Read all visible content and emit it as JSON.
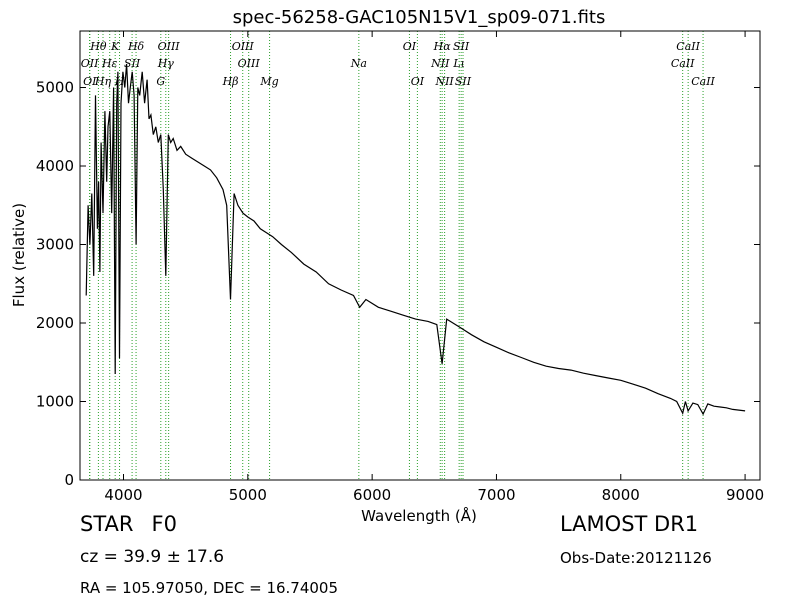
{
  "chart_data": {
    "type": "line",
    "title": "spec-56258-GAC105N15V1_sp09-071.fits",
    "xlabel": "Wavelength (Å)",
    "ylabel": "Flux (relative)",
    "xlim": [
      3650,
      9120
    ],
    "ylim": [
      0,
      5720
    ],
    "xticks": [
      4000,
      5000,
      6000,
      7000,
      8000,
      9000
    ],
    "xtick_labels": [
      "4000",
      "5000",
      "6000",
      "7000",
      "8000",
      "9000"
    ],
    "yticks": [
      0,
      1000,
      2000,
      3000,
      4000,
      5000
    ],
    "ytick_labels": [
      "0",
      "1000",
      "2000",
      "3000",
      "4000",
      "5000"
    ],
    "grid": false,
    "line_color": "#000000",
    "marker_color": "#2ca02c",
    "series": [
      {
        "x": [
          3700,
          3715,
          3730,
          3745,
          3760,
          3775,
          3790,
          3800,
          3810,
          3820,
          3835,
          3850,
          3865,
          3875,
          3890,
          3905,
          3920,
          3933,
          3945,
          3955,
          3968,
          3980,
          3995,
          4010,
          4025,
          4040,
          4055,
          4070,
          4085,
          4101,
          4115,
          4130,
          4150,
          4170,
          4190,
          4205,
          4220,
          4240,
          4260,
          4280,
          4300,
          4320,
          4340,
          4360,
          4380,
          4400,
          4430,
          4460,
          4500,
          4550,
          4600,
          4650,
          4700,
          4750,
          4800,
          4830,
          4861,
          4890,
          4920,
          4960,
          5000,
          5050,
          5100,
          5150,
          5200,
          5270,
          5350,
          5450,
          5550,
          5650,
          5750,
          5850,
          5900,
          5950,
          6050,
          6150,
          6250,
          6350,
          6450,
          6520,
          6563,
          6600,
          6700,
          6800,
          6900,
          7000,
          7100,
          7200,
          7300,
          7400,
          7500,
          7600,
          7700,
          7800,
          7900,
          8000,
          8100,
          8200,
          8300,
          8400,
          8450,
          8498,
          8520,
          8542,
          8580,
          8620,
          8662,
          8700,
          8750,
          8800,
          8850,
          8900,
          8950,
          9000
        ],
        "y": [
          2350,
          3500,
          3000,
          3650,
          2600,
          4900,
          3200,
          3800,
          2650,
          4300,
          3400,
          4700,
          3800,
          4500,
          4700,
          3400,
          5000,
          1350,
          4800,
          5200,
          1550,
          4800,
          5200,
          5000,
          5300,
          4800,
          5000,
          5200,
          4900,
          3000,
          5000,
          4900,
          5200,
          4800,
          5100,
          4600,
          4650,
          4400,
          4500,
          4300,
          4400,
          3700,
          2600,
          4400,
          4300,
          4350,
          4200,
          4250,
          4150,
          4100,
          4050,
          4000,
          3950,
          3850,
          3700,
          3500,
          2300,
          3650,
          3500,
          3400,
          3350,
          3300,
          3200,
          3150,
          3100,
          3000,
          2900,
          2750,
          2650,
          2500,
          2420,
          2350,
          2200,
          2300,
          2200,
          2150,
          2100,
          2050,
          2020,
          1980,
          1480,
          2050,
          1950,
          1850,
          1760,
          1690,
          1620,
          1560,
          1500,
          1450,
          1420,
          1400,
          1360,
          1330,
          1300,
          1270,
          1220,
          1170,
          1100,
          1040,
          1000,
          850,
          1000,
          880,
          980,
          960,
          840,
          970,
          940,
          930,
          920,
          900,
          890,
          880
        ]
      }
    ],
    "line_markers": [
      {
        "label": "Hθ",
        "x": 3798,
        "row": 1
      },
      {
        "label": "K",
        "x": 3933,
        "row": 1
      },
      {
        "label": "Hδ",
        "x": 4101,
        "row": 1
      },
      {
        "label": "OIII",
        "x": 4363,
        "row": 1
      },
      {
        "label": "OIII",
        "x": 4959,
        "row": 1
      },
      {
        "label": "OI",
        "x": 6300,
        "row": 1
      },
      {
        "label": "Hα",
        "x": 6563,
        "row": 1
      },
      {
        "label": "SII",
        "x": 6716,
        "row": 1
      },
      {
        "label": "CaII",
        "x": 8542,
        "row": 1
      },
      {
        "label": "OII",
        "x": 3727,
        "row": 2
      },
      {
        "label": "Hε",
        "x": 3889,
        "row": 2
      },
      {
        "label": "SII",
        "x": 4069,
        "row": 2
      },
      {
        "label": "Hγ",
        "x": 4340,
        "row": 2
      },
      {
        "label": "OIII",
        "x": 5007,
        "row": 2
      },
      {
        "label": "Na",
        "x": 5893,
        "row": 2
      },
      {
        "label": "NII",
        "x": 6548,
        "row": 2
      },
      {
        "label": "Lι",
        "x": 6700,
        "row": 2
      },
      {
        "label": "CaII",
        "x": 8498,
        "row": 2
      },
      {
        "label": "OI",
        "x": 3729,
        "row": 3
      },
      {
        "label": "Hη",
        "x": 3835,
        "row": 3
      },
      {
        "label": "H",
        "x": 3968,
        "row": 3
      },
      {
        "label": "G",
        "x": 4300,
        "row": 3
      },
      {
        "label": "Hβ",
        "x": 4861,
        "row": 3
      },
      {
        "label": "Mg",
        "x": 5175,
        "row": 3
      },
      {
        "label": "OI",
        "x": 6364,
        "row": 3
      },
      {
        "label": "NII",
        "x": 6583,
        "row": 3
      },
      {
        "label": "SII",
        "x": 6731,
        "row": 3
      },
      {
        "label": "CaII",
        "x": 8662,
        "row": 3
      }
    ]
  },
  "info": {
    "object_class": "STAR",
    "subclass": "F0",
    "survey": "LAMOST DR1",
    "cz": "cz = 39.9  ± 17.6",
    "obs_date": "Obs-Date:20121126",
    "radec": "RA = 105.97050, DEC = 16.74005"
  }
}
